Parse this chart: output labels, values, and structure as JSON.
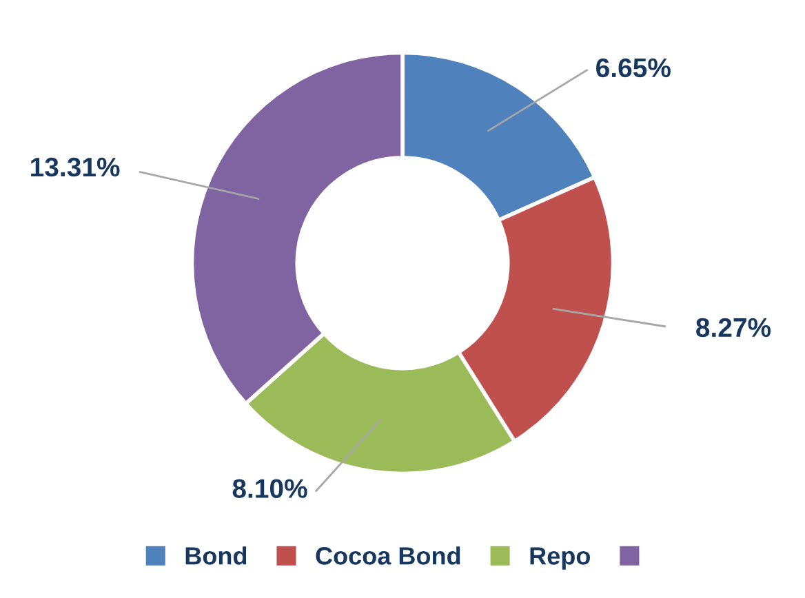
{
  "chart_data": {
    "type": "donut",
    "categories": [
      "Bond",
      "Cocoa Bond",
      "Repo",
      null
    ],
    "values": [
      6.65,
      8.27,
      8.1,
      13.31
    ],
    "colors": [
      "#4f81bd",
      "#c0504d",
      "#9bbb59",
      "#8064a2"
    ],
    "value_labels": [
      "6.65%",
      "8.27%",
      "8.10%",
      "13.31%"
    ],
    "legend": "bottom"
  }
}
